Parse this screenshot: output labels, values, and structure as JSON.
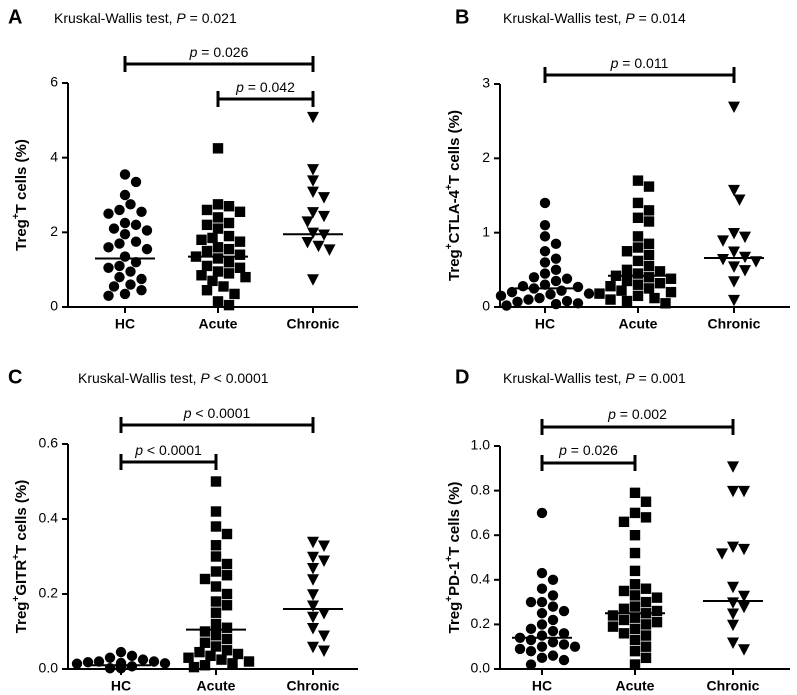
{
  "chart_data": [
    {
      "panel": "A",
      "type": "scatter",
      "subtitle": {
        "prefix": "Kruskal-Wallis test, ",
        "p_symbol": "P",
        "rest": " = 0.021"
      },
      "ylabel": {
        "pre": "Treg",
        "sup": "+",
        "post": "T cells (%)"
      },
      "ylim": [
        0,
        6
      ],
      "yticks": [
        0,
        2,
        4,
        6
      ],
      "ytick_labels": [
        "0",
        "2",
        "4",
        "6"
      ],
      "categories": [
        "HC",
        "Acute",
        "Chronic"
      ],
      "markers": [
        "circle",
        "square",
        "triangle-down"
      ],
      "series": [
        {
          "name": "HC",
          "median": 1.3,
          "values": [
            3.55,
            3.35,
            3.0,
            2.75,
            2.55,
            2.5,
            2.6,
            2.25,
            2.2,
            2.05,
            2.1,
            1.95,
            1.75,
            1.7,
            1.6,
            1.55,
            1.35,
            1.2,
            1.1,
            1.05,
            0.95,
            0.8,
            0.75,
            0.6,
            0.55,
            0.45,
            0.35,
            0.3
          ]
        },
        {
          "name": "Acute",
          "median": 1.35,
          "values": [
            4.25,
            2.75,
            2.7,
            2.6,
            2.55,
            2.4,
            2.25,
            2.2,
            2.1,
            1.9,
            1.85,
            1.8,
            1.75,
            1.6,
            1.55,
            1.5,
            1.4,
            1.35,
            1.3,
            1.2,
            1.1,
            1.05,
            0.95,
            0.9,
            0.85,
            0.8,
            0.7,
            0.55,
            0.45,
            0.35,
            0.15,
            0.05
          ]
        },
        {
          "name": "Chronic",
          "median": 1.95,
          "values": [
            5.1,
            3.7,
            3.4,
            3.1,
            2.95,
            2.55,
            2.45,
            2.3,
            2.0,
            1.95,
            1.75,
            1.65,
            1.55,
            0.75
          ]
        }
      ],
      "comparisons": [
        {
          "from": "HC",
          "to": "Chronic",
          "label": "p = 0.026"
        },
        {
          "from": "Acute",
          "to": "Chronic",
          "label": "p = 0.042"
        }
      ]
    },
    {
      "panel": "B",
      "type": "scatter",
      "subtitle": {
        "prefix": "Kruskal-Wallis test, ",
        "p_symbol": "P",
        "rest": " = 0.014"
      },
      "ylabel": {
        "pre": "Treg",
        "sup": "+",
        "post": "CTLA-4",
        "sup2": "+",
        "post2": "T cells (%)"
      },
      "ylim": [
        0,
        3
      ],
      "yticks": [
        0,
        1,
        2,
        3
      ],
      "ytick_labels": [
        "0",
        "1",
        "2",
        "3"
      ],
      "categories": [
        "HC",
        "Acute",
        "Chronic"
      ],
      "markers": [
        "circle",
        "square",
        "triangle-down"
      ],
      "series": [
        {
          "name": "HC",
          "median": 0.25,
          "values": [
            1.4,
            1.1,
            0.95,
            0.85,
            0.75,
            0.65,
            0.6,
            0.5,
            0.45,
            0.4,
            0.38,
            0.35,
            0.3,
            0.28,
            0.27,
            0.25,
            0.22,
            0.2,
            0.18,
            0.17,
            0.15,
            0.12,
            0.1,
            0.08,
            0.07,
            0.05,
            0.04,
            0.02
          ]
        },
        {
          "name": "Acute",
          "median": 0.42,
          "values": [
            1.7,
            1.62,
            1.4,
            1.3,
            1.2,
            1.15,
            0.95,
            0.85,
            0.8,
            0.75,
            0.7,
            0.62,
            0.55,
            0.5,
            0.48,
            0.45,
            0.42,
            0.4,
            0.38,
            0.35,
            0.32,
            0.3,
            0.28,
            0.25,
            0.22,
            0.2,
            0.18,
            0.15,
            0.12,
            0.1,
            0.08,
            0.05
          ]
        },
        {
          "name": "Chronic",
          "median": 0.66,
          "values": [
            2.7,
            1.58,
            1.45,
            1.0,
            0.95,
            0.9,
            0.75,
            0.68,
            0.65,
            0.62,
            0.55,
            0.5,
            0.35,
            0.1
          ]
        }
      ],
      "comparisons": [
        {
          "from": "HC",
          "to": "Chronic",
          "label": "p = 0.011"
        }
      ]
    },
    {
      "panel": "C",
      "type": "scatter",
      "subtitle": {
        "prefix": "Kruskal-Wallis test, ",
        "p_symbol": "P",
        "rest": " < 0.0001"
      },
      "ylabel": {
        "pre": "Treg",
        "sup": "+",
        "post": "GITR",
        "sup2": "+",
        "post2": "T cells (%)"
      },
      "ylim": [
        0,
        0.6
      ],
      "yticks": [
        0,
        0.2,
        0.4,
        0.6
      ],
      "ytick_labels": [
        "0.0",
        "0.2",
        "0.4",
        "0.6"
      ],
      "categories": [
        "HC",
        "Acute",
        "Chronic"
      ],
      "markers": [
        "circle",
        "square",
        "triangle-down"
      ],
      "series": [
        {
          "name": "HC",
          "median": 0.01,
          "values": [
            0.045,
            0.035,
            0.03,
            0.025,
            0.02,
            0.02,
            0.018,
            0.016,
            0.015,
            0.014,
            0.013,
            0.012,
            0.011,
            0.01,
            0.01,
            0.009,
            0.008,
            0.007,
            0.006,
            0.006,
            0.005,
            0.005,
            0.004,
            0.004,
            0.003,
            0.003,
            0.002,
            0.002
          ]
        },
        {
          "name": "Acute",
          "median": 0.105,
          "values": [
            0.5,
            0.42,
            0.38,
            0.36,
            0.33,
            0.3,
            0.28,
            0.26,
            0.25,
            0.24,
            0.22,
            0.2,
            0.18,
            0.17,
            0.15,
            0.12,
            0.11,
            0.1,
            0.09,
            0.08,
            0.07,
            0.06,
            0.05,
            0.045,
            0.04,
            0.035,
            0.03,
            0.025,
            0.02,
            0.015,
            0.01,
            0.005
          ]
        },
        {
          "name": "Chronic",
          "median": 0.16,
          "values": [
            0.34,
            0.33,
            0.3,
            0.29,
            0.27,
            0.24,
            0.2,
            0.17,
            0.15,
            0.14,
            0.11,
            0.09,
            0.06,
            0.05
          ]
        }
      ],
      "comparisons": [
        {
          "from": "HC",
          "to": "Acute",
          "label": "p < 0.0001"
        },
        {
          "from": "HC",
          "to": "Chronic",
          "label": "p < 0.0001"
        }
      ]
    },
    {
      "panel": "D",
      "type": "scatter",
      "subtitle": {
        "prefix": "Kruskal-Wallis test, ",
        "p_symbol": "P",
        "rest": " = 0.001"
      },
      "ylabel": {
        "pre": "Treg",
        "sup": "+",
        "post": "PD-1",
        "sup2": "+",
        "post2": "T cells (%)"
      },
      "ylim": [
        0,
        1
      ],
      "yticks": [
        0,
        0.2,
        0.4,
        0.6,
        0.8,
        1
      ],
      "ytick_labels": [
        "0.0",
        "0.2",
        "0.4",
        "0.6",
        "0.8",
        "1.0"
      ],
      "categories": [
        "HC",
        "Acute",
        "Chronic"
      ],
      "markers": [
        "circle",
        "square",
        "triangle-down"
      ],
      "series": [
        {
          "name": "HC",
          "median": 0.14,
          "values": [
            0.7,
            0.43,
            0.4,
            0.36,
            0.33,
            0.3,
            0.3,
            0.28,
            0.26,
            0.25,
            0.22,
            0.2,
            0.18,
            0.17,
            0.16,
            0.15,
            0.14,
            0.13,
            0.12,
            0.11,
            0.1,
            0.1,
            0.09,
            0.08,
            0.06,
            0.05,
            0.04,
            0.02
          ]
        },
        {
          "name": "Acute",
          "median": 0.25,
          "values": [
            0.79,
            0.75,
            0.7,
            0.68,
            0.66,
            0.6,
            0.52,
            0.44,
            0.38,
            0.36,
            0.35,
            0.33,
            0.32,
            0.3,
            0.28,
            0.27,
            0.26,
            0.25,
            0.24,
            0.23,
            0.22,
            0.21,
            0.2,
            0.19,
            0.18,
            0.16,
            0.15,
            0.13,
            0.1,
            0.08,
            0.05,
            0.02
          ]
        },
        {
          "name": "Chronic",
          "median": 0.305,
          "values": [
            0.91,
            0.8,
            0.8,
            0.55,
            0.54,
            0.52,
            0.37,
            0.33,
            0.3,
            0.28,
            0.25,
            0.2,
            0.12,
            0.09
          ]
        }
      ],
      "comparisons": [
        {
          "from": "HC",
          "to": "Acute",
          "label": "p = 0.026"
        },
        {
          "from": "HC",
          "to": "Chronic",
          "label": "p = 0.002"
        }
      ]
    }
  ]
}
